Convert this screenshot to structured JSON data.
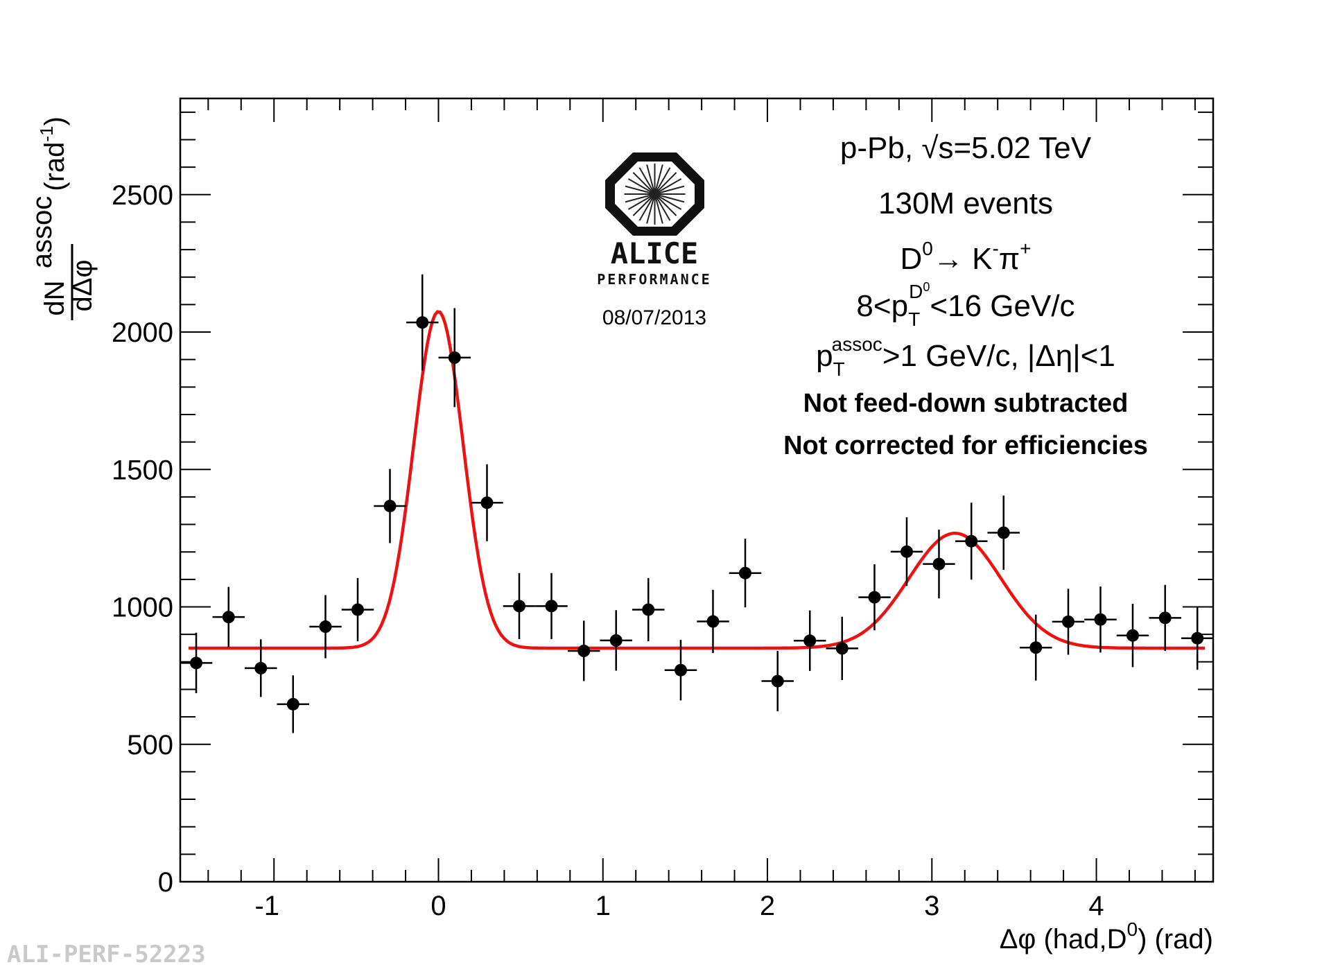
{
  "chart_data": {
    "type": "scatter",
    "title": "",
    "xlabel_parts": {
      "main": "Δφ (had,D",
      "sup": "0",
      "end": ") (rad)"
    },
    "ylabel_parts": {
      "num": "dN",
      "num_sup": "assoc",
      "den": "dΔφ",
      "unit": "(rad",
      "unit_sup": "-1",
      "unit_end": ")"
    },
    "xlim": [
      -1.57,
      4.71
    ],
    "ylim": [
      0,
      2850
    ],
    "x_ticks": [
      -1,
      0,
      1,
      2,
      3,
      4
    ],
    "x_tick_labels": [
      "-1",
      "0",
      "1",
      "2",
      "3",
      "4"
    ],
    "y_ticks": [
      0,
      500,
      1000,
      1500,
      2000,
      2500
    ],
    "y_tick_labels": [
      "0",
      "500",
      "1000",
      "1500",
      "2000",
      "2500"
    ],
    "bin_half_width": 0.098,
    "points": [
      {
        "x": -1.473,
        "y": 796,
        "err": 110
      },
      {
        "x": -1.276,
        "y": 963,
        "err": 110
      },
      {
        "x": -1.08,
        "y": 777,
        "err": 105
      },
      {
        "x": -0.884,
        "y": 646,
        "err": 105
      },
      {
        "x": -0.687,
        "y": 928,
        "err": 115
      },
      {
        "x": -0.491,
        "y": 990,
        "err": 115
      },
      {
        "x": -0.295,
        "y": 1367,
        "err": 135
      },
      {
        "x": -0.098,
        "y": 2035,
        "err": 175
      },
      {
        "x": 0.098,
        "y": 1907,
        "err": 180
      },
      {
        "x": 0.295,
        "y": 1379,
        "err": 140
      },
      {
        "x": 0.491,
        "y": 1003,
        "err": 120
      },
      {
        "x": 0.687,
        "y": 1003,
        "err": 120
      },
      {
        "x": 0.884,
        "y": 840,
        "err": 110
      },
      {
        "x": 1.08,
        "y": 878,
        "err": 110
      },
      {
        "x": 1.276,
        "y": 990,
        "err": 115
      },
      {
        "x": 1.473,
        "y": 770,
        "err": 110
      },
      {
        "x": 1.669,
        "y": 947,
        "err": 115
      },
      {
        "x": 1.865,
        "y": 1123,
        "err": 125
      },
      {
        "x": 2.062,
        "y": 730,
        "err": 110
      },
      {
        "x": 2.258,
        "y": 877,
        "err": 110
      },
      {
        "x": 2.454,
        "y": 849,
        "err": 115
      },
      {
        "x": 2.651,
        "y": 1035,
        "err": 120
      },
      {
        "x": 2.847,
        "y": 1201,
        "err": 125
      },
      {
        "x": 3.043,
        "y": 1156,
        "err": 125
      },
      {
        "x": 3.24,
        "y": 1239,
        "err": 140
      },
      {
        "x": 3.436,
        "y": 1270,
        "err": 135
      },
      {
        "x": 3.632,
        "y": 852,
        "err": 120
      },
      {
        "x": 3.829,
        "y": 946,
        "err": 120
      },
      {
        "x": 4.025,
        "y": 954,
        "err": 120
      },
      {
        "x": 4.221,
        "y": 896,
        "err": 115
      },
      {
        "x": 4.418,
        "y": 960,
        "err": 120
      },
      {
        "x": 4.614,
        "y": 886,
        "err": 115
      }
    ],
    "fit": {
      "type": "double-gaussian",
      "color": "#ee1111",
      "baseline": 850,
      "peaks": [
        {
          "mean": 0.0,
          "amplitude": 1225,
          "sigma": 0.15
        },
        {
          "mean": 3.14,
          "amplitude": 418,
          "sigma": 0.28
        }
      ]
    },
    "legend": "none"
  },
  "annotations": {
    "system": "p-Pb, ",
    "sqrt_sym": "√",
    "energy": "s=5.02 TeV",
    "events": "130M events",
    "decay": {
      "d": "D",
      "d_sup": "0",
      "arrow": "→ K",
      "k_sup": "-",
      "pi": "π",
      "pi_sup": "+"
    },
    "pt_range": {
      "pre": "8<p",
      "sub": "T",
      "sup": "D",
      "sup_sup": "0",
      "post": "<16 GeV/c"
    },
    "assoc_cut": {
      "p": "p",
      "sub": "T",
      "sup": "assoc",
      "post": ">1 GeV/c, |Δη|<1"
    },
    "note1": "Not feed-down subtracted",
    "note2": "Not corrected for efficiencies"
  },
  "logo": {
    "name": "ALICE",
    "subtitle": "PERFORMANCE",
    "date": "08/07/2013"
  },
  "footer": "ALI-PERF-52223"
}
